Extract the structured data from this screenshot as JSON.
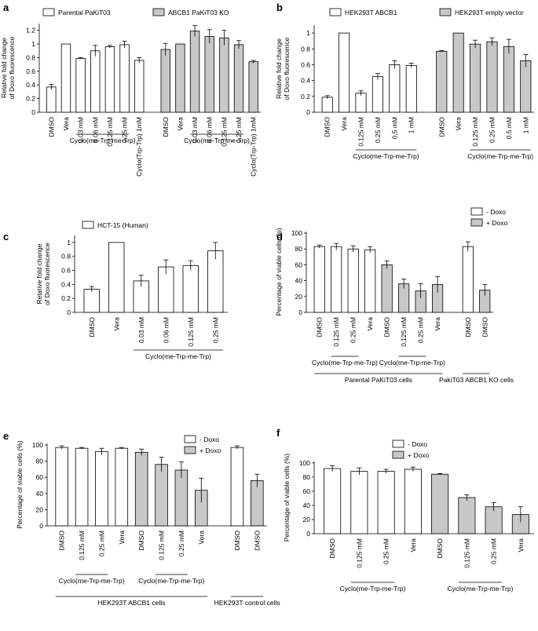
{
  "chart_data": [
    {
      "type": "bar",
      "panel": "a",
      "ylabel": [
        "Relative fold change",
        "of Doxo fluorescence"
      ],
      "categories": [
        "DMSO",
        "Vera",
        "0.03 mM",
        "0.06 mM",
        "0.125 mM",
        "0.25 mM",
        "Cyclo(Trp-Trp) 1mM",
        "DMSO",
        "Vera",
        "0.03 mM",
        "0.06 mM",
        "0.125 mM",
        "0.25 mM",
        "Cyclo(Trp-Trp) 1mM"
      ],
      "series": [
        {
          "name": "Parental PaKiT03",
          "color": "#ffffff",
          "values": [
            0.37,
            1.0,
            0.79,
            0.9,
            0.96,
            0.99,
            0.76,
            null,
            null,
            null,
            null,
            null,
            null,
            null
          ],
          "errors": [
            0.04,
            0.0,
            0.01,
            0.08,
            0.02,
            0.05,
            0.04,
            null,
            null,
            null,
            null,
            null,
            null,
            null
          ]
        },
        {
          "name": "ABCB1 PaKiT03 KO",
          "color": "#c8c8c8",
          "values": [
            null,
            null,
            null,
            null,
            null,
            null,
            null,
            0.92,
            1.0,
            1.19,
            1.11,
            1.09,
            0.99,
            0.74
          ],
          "errors": [
            null,
            null,
            null,
            null,
            null,
            null,
            null,
            0.09,
            0.0,
            0.08,
            0.1,
            0.11,
            0.06,
            0.02
          ]
        }
      ],
      "groups": [
        {
          "label": "Cyclo(me-Trp-me-Trp)",
          "from": 2,
          "to": 5,
          "level": 1
        },
        {
          "label": "Cyclo(me-Trp-me-Trp)",
          "from": 9,
          "to": 12,
          "level": 1
        }
      ],
      "ylim": [
        0,
        1.3
      ],
      "yticks": [
        0,
        0.2,
        0.4,
        0.6,
        0.8,
        1.0,
        1.2
      ]
    },
    {
      "type": "bar",
      "panel": "b",
      "ylabel": [
        "Relative fold change",
        "of Doxo fluorescence"
      ],
      "categories": [
        "DMSO",
        "Vera",
        "0.125 mM",
        "0.25 mM",
        "0.5 mM",
        "1 mM",
        "DMSO",
        "Vera",
        "0.125 mM",
        "0.25 mM",
        "0.5 mM",
        "1 mM"
      ],
      "series": [
        {
          "name": "HEK293T ABCB1",
          "color": "#ffffff",
          "values": [
            0.19,
            1.0,
            0.24,
            0.45,
            0.6,
            0.59,
            null,
            null,
            null,
            null,
            null,
            null
          ],
          "errors": [
            0.02,
            0.0,
            0.03,
            0.04,
            0.05,
            0.03,
            null,
            null,
            null,
            null,
            null,
            null
          ]
        },
        {
          "name": "HEK293T empty vector",
          "color": "#c8c8c8",
          "values": [
            null,
            null,
            null,
            null,
            null,
            null,
            0.77,
            1.0,
            0.86,
            0.89,
            0.83,
            0.65
          ],
          "errors": [
            null,
            null,
            null,
            null,
            null,
            null,
            0.01,
            0.0,
            0.05,
            0.05,
            0.09,
            0.08
          ]
        }
      ],
      "groups": [
        {
          "label": "Cyclo(me-Trp-me-Trp)",
          "from": 2,
          "to": 5,
          "level": 1
        },
        {
          "label": "Cyclo(me-Trp-me-Trp)",
          "from": 8,
          "to": 11,
          "level": 1
        }
      ],
      "ylim": [
        0,
        1.1
      ],
      "yticks": [
        0,
        0.2,
        0.4,
        0.6,
        0.8,
        1.0
      ]
    },
    {
      "type": "bar",
      "panel": "c",
      "ylabel": [
        "Relative fold change",
        "of Doxo fluorescence"
      ],
      "categories": [
        "DMSO",
        "Vera",
        "0.03 mM",
        "0.06 mM",
        "0.125 mM",
        "0.25 mM"
      ],
      "series": [
        {
          "name": "HCT-15 (Human)",
          "color": "#ffffff",
          "values": [
            0.33,
            1.0,
            0.45,
            0.65,
            0.67,
            0.88
          ],
          "errors": [
            0.04,
            0.0,
            0.08,
            0.1,
            0.07,
            0.12
          ]
        }
      ],
      "groups": [
        {
          "label": "Cyclo(me-Trp-me-Trp)",
          "from": 2,
          "to": 5,
          "level": 1
        }
      ],
      "ylim": [
        0,
        1.1
      ],
      "yticks": [
        0,
        0.2,
        0.4,
        0.6,
        0.8,
        1.0
      ]
    },
    {
      "type": "bar",
      "panel": "d",
      "ylabel": "Percentage of viable cells (%)",
      "categories": [
        "DMSO",
        "0.125 mM",
        "0.25 mM",
        "Vera",
        "DMSO",
        "0.125 mM",
        "0.25 mM",
        "Vera",
        "DMSO",
        "DMSO"
      ],
      "series": [
        {
          "name": "- Doxo",
          "color": "#ffffff",
          "values": [
            83,
            83,
            80,
            79,
            null,
            null,
            null,
            null,
            83,
            null
          ],
          "errors": [
            2,
            4,
            4,
            4,
            null,
            null,
            null,
            null,
            6,
            null
          ]
        },
        {
          "name": "+ Doxo",
          "color": "#c8c8c8",
          "values": [
            null,
            null,
            null,
            null,
            60,
            36,
            27,
            35,
            null,
            28
          ],
          "errors": [
            null,
            null,
            null,
            null,
            5,
            6,
            9,
            10,
            null,
            7
          ]
        }
      ],
      "groups": [
        {
          "label": "Cyclo(me-Trp-me-Trp)",
          "from": 1,
          "to": 2,
          "level": 1
        },
        {
          "label": "Cyclo(me-Trp-me-Trp)",
          "from": 5,
          "to": 6,
          "level": 1
        },
        {
          "label": "Parental PaKiT03 cells",
          "from": 0,
          "to": 7,
          "level": 2
        },
        {
          "label": "PakiT03 ABCB1 KO cells",
          "from": 8,
          "to": 9,
          "level": 2
        }
      ],
      "ylim": [
        0,
        102
      ],
      "yticks": [
        0,
        20,
        40,
        60,
        80,
        100
      ]
    },
    {
      "type": "bar",
      "panel": "e",
      "ylabel": "Percentage of viable cells (%)",
      "categories": [
        "DMSO",
        "0.125 mM",
        "0.25 mM",
        "Vera",
        "DMSO",
        "0.125 mM",
        "0.25 mM",
        "Vera",
        "DMSO",
        "DMSO"
      ],
      "series": [
        {
          "name": "- Doxo",
          "color": "#ffffff",
          "values": [
            97,
            96,
            92,
            96,
            null,
            null,
            null,
            null,
            97,
            null
          ],
          "errors": [
            2,
            1,
            4,
            1,
            null,
            null,
            null,
            null,
            2,
            null
          ]
        },
        {
          "name": "+ Doxo",
          "color": "#c8c8c8",
          "values": [
            null,
            null,
            null,
            null,
            91,
            76,
            69,
            44,
            null,
            56
          ],
          "errors": [
            null,
            null,
            null,
            null,
            4,
            9,
            10,
            15,
            null,
            8
          ]
        }
      ],
      "groups": [
        {
          "label": "Cyclo(me-Trp-me-Trp)",
          "from": 1,
          "to": 2,
          "level": 1
        },
        {
          "label": "Cyclo(me-Trp-me-Trp)",
          "from": 5,
          "to": 6,
          "level": 1
        },
        {
          "label": "HEK293T ABCB1 cells",
          "from": 0,
          "to": 7,
          "level": 2
        },
        {
          "label": "HEK293T control cells",
          "from": 8,
          "to": 9,
          "level": 2
        }
      ],
      "ylim": [
        0,
        102
      ],
      "yticks": [
        0,
        20,
        40,
        60,
        80,
        100
      ]
    },
    {
      "type": "bar",
      "panel": "f",
      "ylabel": "Percentage of viable cells (%)",
      "categories": [
        "DMSO",
        "0.125 mM",
        "0.25 mM",
        "Vera",
        "DMSO",
        "0.125 mM",
        "0.25 mM",
        "Vera"
      ],
      "series": [
        {
          "name": "- Doxo",
          "color": "#ffffff",
          "values": [
            92,
            88,
            88,
            91,
            null,
            null,
            null,
            null
          ],
          "errors": [
            4,
            5,
            3,
            3,
            null,
            null,
            null,
            null
          ]
        },
        {
          "name": "+ Doxo",
          "color": "#c8c8c8",
          "values": [
            null,
            null,
            null,
            null,
            84,
            51,
            38,
            27
          ],
          "errors": [
            null,
            null,
            null,
            null,
            1,
            4,
            6,
            11
          ]
        }
      ],
      "groups": [
        {
          "label": "Cyclo(me-Trp-me-Trp)",
          "from": 1,
          "to": 2,
          "level": 1
        },
        {
          "label": "Cyclo(me-Trp-me-Trp)",
          "from": 5,
          "to": 6,
          "level": 1
        }
      ],
      "ylim": [
        0,
        102
      ],
      "yticks": [
        0,
        20,
        40,
        60,
        80,
        100
      ]
    }
  ]
}
